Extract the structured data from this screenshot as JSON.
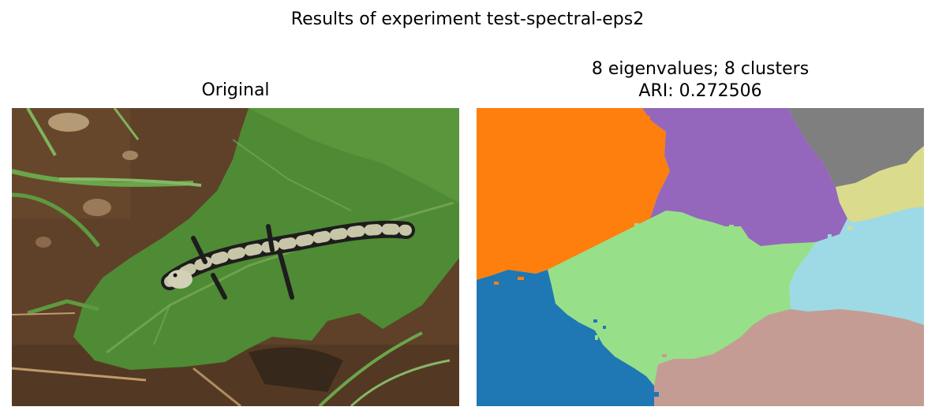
{
  "figure": {
    "suptitle": "Results of experiment test-spectral-eps2"
  },
  "left_panel": {
    "title": "Original"
  },
  "right_panel": {
    "title_line1": "8 eigenvalues; 8 clusters",
    "title_line2": "ARI: 0.272506"
  },
  "segments": [
    {
      "name": "orange-segment",
      "color": "#ff7f0e"
    },
    {
      "name": "purple-segment",
      "color": "#9467bd"
    },
    {
      "name": "gray-segment",
      "color": "#7f7f7f"
    },
    {
      "name": "olive-segment",
      "color": "#dbdb8d"
    },
    {
      "name": "lightblue-segment",
      "color": "#9edae5"
    },
    {
      "name": "lightgreen-segment",
      "color": "#98df8a"
    },
    {
      "name": "blue-segment",
      "color": "#1f77b4"
    },
    {
      "name": "rosybrown-segment",
      "color": "#c49c94"
    }
  ]
}
